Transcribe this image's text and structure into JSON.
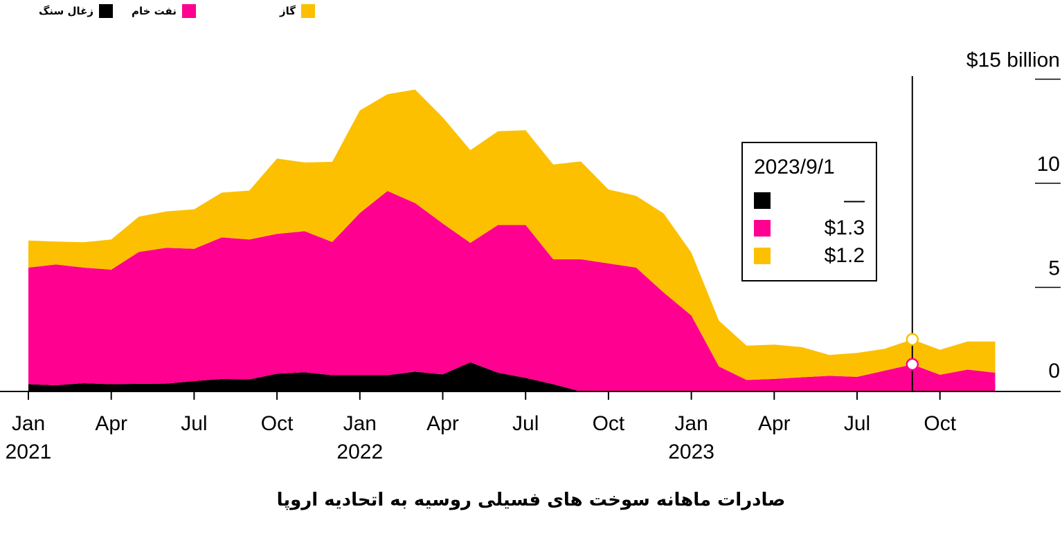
{
  "chart_data": {
    "type": "area",
    "stacked": true,
    "title": "صادرات ماهانه سوخت های فسیلی روسیه به اتحادیه اروپا",
    "y_unit_label": "$15 billion",
    "ylim": [
      0,
      15
    ],
    "y_ticks": [
      0,
      5,
      10,
      15
    ],
    "y_tick_labels": [
      "0",
      "5",
      "10",
      "$15 billion"
    ],
    "x_ticks": [
      {
        "date": "2021-01",
        "label": "Jan",
        "year": "2021"
      },
      {
        "date": "2021-04",
        "label": "Apr",
        "year": ""
      },
      {
        "date": "2021-07",
        "label": "Jul",
        "year": ""
      },
      {
        "date": "2021-10",
        "label": "Oct",
        "year": ""
      },
      {
        "date": "2022-01",
        "label": "Jan",
        "year": "2022"
      },
      {
        "date": "2022-04",
        "label": "Apr",
        "year": ""
      },
      {
        "date": "2022-07",
        "label": "Jul",
        "year": ""
      },
      {
        "date": "2022-10",
        "label": "Oct",
        "year": ""
      },
      {
        "date": "2023-01",
        "label": "Jan",
        "year": "2023"
      },
      {
        "date": "2023-04",
        "label": "Apr",
        "year": ""
      },
      {
        "date": "2023-07",
        "label": "Jul",
        "year": ""
      },
      {
        "date": "2023-10",
        "label": "Oct",
        "year": ""
      }
    ],
    "x": [
      "2021-01",
      "2021-02",
      "2021-03",
      "2021-04",
      "2021-05",
      "2021-06",
      "2021-07",
      "2021-08",
      "2021-09",
      "2021-10",
      "2021-11",
      "2021-12",
      "2022-01",
      "2022-02",
      "2022-03",
      "2022-04",
      "2022-05",
      "2022-06",
      "2022-07",
      "2022-08",
      "2022-09",
      "2022-10",
      "2022-11",
      "2022-12",
      "2023-01",
      "2023-02",
      "2023-03",
      "2023-04",
      "2023-05",
      "2023-06",
      "2023-07",
      "2023-08",
      "2023-09",
      "2023-10",
      "2023-11",
      "2023-12"
    ],
    "series": [
      {
        "name": "زغال سنگ",
        "color": "#000000",
        "values": [
          0.35,
          0.3,
          0.4,
          0.35,
          0.37,
          0.38,
          0.5,
          0.6,
          0.58,
          0.85,
          0.92,
          0.78,
          0.78,
          0.78,
          0.95,
          0.82,
          1.4,
          0.9,
          0.65,
          0.35,
          0.0,
          0,
          0,
          0,
          0,
          0,
          0,
          0,
          0,
          0,
          0,
          0,
          0,
          0,
          0,
          0
        ]
      },
      {
        "name": "نفت خام",
        "color": "#ff0090",
        "values": [
          5.6,
          5.8,
          5.55,
          5.5,
          6.33,
          6.52,
          6.35,
          6.8,
          6.72,
          6.72,
          6.78,
          6.4,
          7.79,
          8.85,
          8.1,
          7.25,
          5.74,
          7.1,
          7.35,
          6.0,
          6.35,
          6.15,
          5.95,
          4.75,
          3.65,
          1.2,
          0.55,
          0.6,
          0.68,
          0.75,
          0.7,
          1.0,
          1.3,
          0.8,
          1.05,
          0.9
        ]
      },
      {
        "name": "گاز",
        "color": "#fcc000",
        "values": [
          1.3,
          1.1,
          1.22,
          1.45,
          1.7,
          1.75,
          1.9,
          2.15,
          2.35,
          3.62,
          3.3,
          3.85,
          4.93,
          4.65,
          5.45,
          5.1,
          4.45,
          4.5,
          4.55,
          4.55,
          4.7,
          3.55,
          3.45,
          3.8,
          3.02,
          2.2,
          1.65,
          1.65,
          1.45,
          1.0,
          1.15,
          1.05,
          1.2,
          1.2,
          1.35,
          1.5
        ]
      }
    ],
    "legend_position": "top-left",
    "grid": false,
    "highlight": {
      "date_label": "2023/9/1",
      "x": "2023-09",
      "rows": [
        {
          "series": "زغال سنگ",
          "value": "—"
        },
        {
          "series": "نفت خام",
          "value": "$1.3"
        },
        {
          "series": "گاز",
          "value": "$1.2"
        }
      ]
    }
  },
  "colors": {
    "coal": "#000000",
    "oil": "#ff0090",
    "gas": "#fcc000"
  }
}
